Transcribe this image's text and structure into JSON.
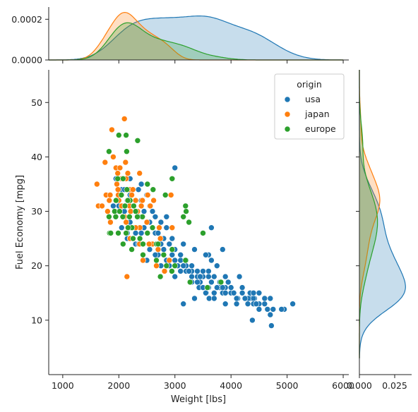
{
  "chart_data": {
    "type": "scatter",
    "xlabel": "Weight [lbs]",
    "ylabel": "Fuel Economy [mpg]",
    "xlim": [
      750,
      6100
    ],
    "ylim": [
      0,
      56
    ],
    "xticks": [
      1000,
      2000,
      3000,
      4000,
      5000,
      6000
    ],
    "yticks": [
      10,
      20,
      30,
      40,
      50
    ],
    "top_marginal": {
      "type": "area",
      "ylim": [
        0,
        0.00026
      ],
      "yticks": [
        0.0,
        0.0002
      ],
      "ytick_labels": [
        "0.0000",
        "0.0002"
      ]
    },
    "right_marginal": {
      "type": "area",
      "xlim": [
        0,
        0.037
      ],
      "xticks": [
        0.0,
        0.025
      ],
      "xtick_labels": [
        "0.000",
        "0.025"
      ]
    },
    "legend": {
      "title": "origin",
      "placement": "top-right",
      "entries": [
        "usa",
        "japan",
        "europe"
      ]
    },
    "colors": {
      "usa": "#1f77b4",
      "japan": "#ff7f0e",
      "europe": "#2ca02c"
    },
    "series": [
      {
        "name": "usa",
        "points": [
          [
            3500,
            18
          ],
          [
            3700,
            15
          ],
          [
            3440,
            18
          ],
          [
            3430,
            16
          ],
          [
            3450,
            17
          ],
          [
            4340,
            15
          ],
          [
            4350,
            14
          ],
          [
            4310,
            14
          ],
          [
            4420,
            14
          ],
          [
            3850,
            15
          ],
          [
            3560,
            15
          ],
          [
            3610,
            14
          ],
          [
            4500,
            15
          ],
          [
            4120,
            14
          ],
          [
            3300,
            19
          ],
          [
            3600,
            22
          ],
          [
            3900,
            18
          ],
          [
            3650,
            21
          ],
          [
            4100,
            13
          ],
          [
            4400,
            14
          ],
          [
            4600,
            13
          ],
          [
            4750,
            12
          ],
          [
            4950,
            12
          ],
          [
            4500,
            13
          ],
          [
            2150,
            25
          ],
          [
            2250,
            25
          ],
          [
            2300,
            26
          ],
          [
            2200,
            28
          ],
          [
            2900,
            21
          ],
          [
            3100,
            21
          ],
          [
            3200,
            19
          ],
          [
            3400,
            17
          ],
          [
            3000,
            18
          ],
          [
            2800,
            22
          ],
          [
            3800,
            17
          ],
          [
            3900,
            15
          ],
          [
            4200,
            16
          ],
          [
            4400,
            15
          ],
          [
            4700,
            14
          ],
          [
            4900,
            12
          ],
          [
            5100,
            13
          ],
          [
            4650,
            12
          ],
          [
            4200,
            15
          ],
          [
            3900,
            13
          ],
          [
            3600,
            16
          ],
          [
            3300,
            18
          ],
          [
            3000,
            21
          ],
          [
            2800,
            23
          ],
          [
            2600,
            24
          ],
          [
            2400,
            26
          ],
          [
            2300,
            24
          ],
          [
            2200,
            27
          ],
          [
            2100,
            29
          ],
          [
            2000,
            30
          ],
          [
            2500,
            21
          ],
          [
            2700,
            22
          ],
          [
            2900,
            20
          ],
          [
            3100,
            19
          ],
          [
            3200,
            20
          ],
          [
            3400,
            18
          ],
          [
            3600,
            19
          ],
          [
            3800,
            17
          ],
          [
            4000,
            16
          ],
          [
            4200,
            15
          ],
          [
            4400,
            13
          ],
          [
            4600,
            14
          ],
          [
            3700,
            14
          ],
          [
            3500,
            16
          ],
          [
            3300,
            17
          ],
          [
            3150,
            20
          ],
          [
            2950,
            22
          ],
          [
            2750,
            24
          ],
          [
            2650,
            26
          ],
          [
            2550,
            28
          ],
          [
            2450,
            27
          ],
          [
            2350,
            29
          ],
          [
            2250,
            31
          ],
          [
            2150,
            32
          ],
          [
            2050,
            34
          ],
          [
            1950,
            36
          ],
          [
            1850,
            33
          ],
          [
            1900,
            31
          ],
          [
            2100,
            30
          ],
          [
            2200,
            33
          ],
          [
            2300,
            30
          ],
          [
            2400,
            32
          ],
          [
            2600,
            27
          ],
          [
            2700,
            26
          ],
          [
            2800,
            25
          ],
          [
            2900,
            24
          ],
          [
            3000,
            23
          ],
          [
            3100,
            22
          ],
          [
            3200,
            21
          ],
          [
            3300,
            20
          ],
          [
            3400,
            19
          ],
          [
            3500,
            19
          ],
          [
            3600,
            18
          ],
          [
            3700,
            18
          ],
          [
            3800,
            16
          ],
          [
            3900,
            16
          ],
          [
            4000,
            15
          ],
          [
            4100,
            14
          ],
          [
            4300,
            13
          ],
          [
            4500,
            12
          ],
          [
            4700,
            11
          ],
          [
            3750,
            20
          ],
          [
            3550,
            22
          ],
          [
            3350,
            23
          ],
          [
            3150,
            24
          ],
          [
            2950,
            25
          ],
          [
            2850,
            27
          ],
          [
            2650,
            29
          ],
          [
            2550,
            31
          ],
          [
            2450,
            30
          ],
          [
            2350,
            34
          ],
          [
            3000,
            38
          ],
          [
            3850,
            23
          ],
          [
            3650,
            27
          ],
          [
            2750,
            28
          ],
          [
            2850,
            29
          ],
          [
            2600,
            30
          ],
          [
            2500,
            33
          ],
          [
            2400,
            35
          ],
          [
            2300,
            32
          ],
          [
            2200,
            36
          ],
          [
            2100,
            34
          ],
          [
            2000,
            31
          ],
          [
            1950,
            29
          ],
          [
            2050,
            27
          ],
          [
            2150,
            26
          ],
          [
            2350,
            24
          ],
          [
            2550,
            23
          ],
          [
            2650,
            22
          ],
          [
            2850,
            21
          ],
          [
            3050,
            20
          ],
          [
            3250,
            19
          ],
          [
            3450,
            18
          ],
          [
            3650,
            17
          ],
          [
            3850,
            16
          ],
          [
            4050,
            15
          ],
          [
            4250,
            14
          ],
          [
            4450,
            13
          ],
          [
            4150,
            18
          ],
          [
            3950,
            17
          ],
          [
            3750,
            16
          ],
          [
            3550,
            15
          ],
          [
            3350,
            14
          ],
          [
            3150,
            13
          ],
          [
            2950,
            19
          ],
          [
            2750,
            20
          ],
          [
            4380,
            10
          ],
          [
            4720,
            9
          ]
        ]
      },
      {
        "name": "japan",
        "points": [
          [
            2370,
            24
          ],
          [
            2375,
            27
          ],
          [
            1610,
            35
          ],
          [
            1635,
            31
          ],
          [
            1773,
            33
          ],
          [
            1830,
            32
          ],
          [
            1950,
            38
          ],
          [
            2130,
            36
          ],
          [
            2200,
            34
          ],
          [
            2300,
            32
          ],
          [
            1990,
            33
          ],
          [
            2100,
            31
          ],
          [
            2210,
            30
          ],
          [
            2370,
            37
          ],
          [
            2020,
            38
          ],
          [
            1875,
            45
          ],
          [
            2100,
            47
          ],
          [
            1900,
            40
          ],
          [
            1980,
            37
          ],
          [
            2050,
            36
          ],
          [
            2120,
            39
          ],
          [
            2250,
            34
          ],
          [
            2400,
            31
          ],
          [
            2500,
            28
          ],
          [
            2600,
            24
          ],
          [
            2700,
            23
          ],
          [
            2800,
            22
          ],
          [
            2900,
            21
          ],
          [
            2950,
            27
          ],
          [
            2300,
            27
          ],
          [
            2200,
            25
          ],
          [
            2100,
            29
          ],
          [
            2000,
            32
          ],
          [
            1800,
            30
          ],
          [
            1850,
            28
          ],
          [
            1755,
            39
          ],
          [
            1965,
            35
          ],
          [
            2230,
            33
          ],
          [
            2335,
            30
          ],
          [
            2420,
            32
          ],
          [
            2515,
            33
          ],
          [
            2560,
            31
          ],
          [
            2620,
            32
          ],
          [
            2720,
            27
          ],
          [
            2930,
            33
          ],
          [
            2670,
            20
          ],
          [
            2815,
            19
          ],
          [
            2145,
            18
          ],
          [
            2430,
            21
          ],
          [
            2540,
            24
          ],
          [
            2740,
            25
          ],
          [
            2050,
            31
          ],
          [
            2045,
            36
          ],
          [
            1845,
            33
          ],
          [
            1700,
            31
          ],
          [
            2190,
            31
          ],
          [
            1985,
            34
          ],
          [
            2130,
            28
          ],
          [
            2160,
            37
          ]
        ]
      },
      {
        "name": "europe",
        "points": [
          [
            1835,
            26
          ],
          [
            2672,
            24
          ],
          [
            2430,
            24
          ],
          [
            2375,
            25
          ],
          [
            2234,
            27
          ],
          [
            2130,
            26
          ],
          [
            2070,
            29
          ],
          [
            2110,
            31
          ],
          [
            2254,
            25
          ],
          [
            2164,
            27
          ],
          [
            2000,
            44
          ],
          [
            2130,
            44
          ],
          [
            2335,
            43
          ],
          [
            2140,
            41
          ],
          [
            1825,
            41
          ],
          [
            2075,
            36
          ],
          [
            2045,
            33
          ],
          [
            2200,
            32
          ],
          [
            2300,
            30
          ],
          [
            2420,
            29
          ],
          [
            2600,
            27
          ],
          [
            2700,
            24
          ],
          [
            2800,
            22
          ],
          [
            2850,
            20
          ],
          [
            2950,
            23
          ],
          [
            3150,
            29
          ],
          [
            3200,
            30
          ],
          [
            3250,
            28
          ],
          [
            3500,
            26
          ],
          [
            3190,
            31
          ],
          [
            2950,
            36
          ],
          [
            2830,
            33
          ],
          [
            2610,
            34
          ],
          [
            2510,
            35
          ],
          [
            2145,
            34
          ],
          [
            1945,
            29
          ],
          [
            1855,
            26
          ],
          [
            1825,
            29
          ],
          [
            1925,
            30
          ],
          [
            2160,
            32
          ],
          [
            2265,
            31
          ],
          [
            2330,
            29
          ],
          [
            3190,
            21
          ],
          [
            3820,
            17
          ],
          [
            3580,
            16
          ],
          [
            3270,
            17
          ],
          [
            2945,
            19
          ],
          [
            2670,
            21
          ],
          [
            2430,
            22
          ],
          [
            2230,
            23
          ],
          [
            2075,
            24
          ],
          [
            1990,
            26
          ],
          [
            2740,
            18
          ],
          [
            3000,
            20
          ],
          [
            2510,
            26
          ],
          [
            2190,
            29
          ],
          [
            2015,
            30
          ],
          [
            1950,
            32
          ],
          [
            1980,
            36
          ]
        ]
      }
    ]
  }
}
